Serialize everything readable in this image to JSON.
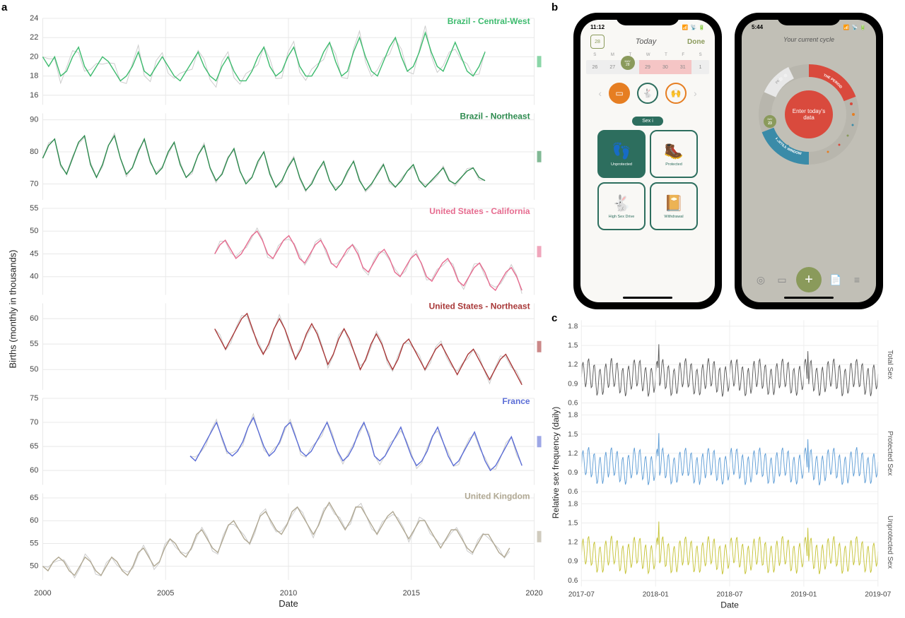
{
  "panel_labels": {
    "a": "a",
    "b": "b",
    "c": "c"
  },
  "chart_a": {
    "type": "line-small-multiples",
    "x_axis_label": "Date",
    "y_axis_label": "Births (monthly in thousands)",
    "x_domain": [
      2000,
      2020
    ],
    "x_ticks": [
      2000,
      2005,
      2010,
      2015,
      2020
    ],
    "background_color": "#ffffff",
    "grid_color": "#e8e8e8",
    "font_size_axis": 11,
    "font_size_label": 13,
    "rows": [
      {
        "label": "Brazil - Central-West",
        "color": "#3dbb6e",
        "y_ticks": [
          16,
          18,
          20,
          22,
          24
        ],
        "ylim": [
          15,
          24
        ],
        "x_start": 2000,
        "values": [
          20,
          19,
          20,
          18,
          18.5,
          20,
          21,
          19,
          18,
          19,
          20,
          19.5,
          18.5,
          17.5,
          18,
          19,
          20.5,
          18.5,
          18,
          19,
          20,
          19,
          18,
          17.5,
          18.5,
          19.5,
          20.5,
          19,
          18,
          17.5,
          19,
          20,
          18.5,
          17.5,
          17.5,
          18.5,
          20,
          21,
          19,
          18,
          18.5,
          20,
          21,
          19,
          18,
          18,
          19,
          20.5,
          21.5,
          19.5,
          18,
          18.5,
          20.5,
          22,
          20,
          18.5,
          18,
          19.5,
          21,
          22,
          20,
          18.5,
          19,
          20.5,
          22.5,
          20.5,
          19,
          18.5,
          20,
          21.5,
          20,
          18.5,
          18,
          19,
          20.5
        ]
      },
      {
        "label": "Brazil - Northeast",
        "color": "#2d8a4e",
        "y_ticks": [
          70,
          80,
          90
        ],
        "ylim": [
          65,
          92
        ],
        "x_start": 2000,
        "values": [
          78,
          82,
          84,
          76,
          73,
          78,
          83,
          85,
          76,
          72,
          76,
          82,
          85,
          78,
          73,
          75,
          80,
          84,
          77,
          73,
          75,
          80,
          83,
          76,
          72,
          74,
          79,
          82,
          75,
          71,
          73,
          78,
          81,
          74,
          70,
          72,
          77,
          80,
          73,
          69,
          71,
          75,
          78,
          72,
          68,
          70,
          74,
          77,
          71,
          68,
          70,
          74,
          77,
          71,
          68,
          70,
          73,
          76,
          71,
          69,
          71,
          74,
          76,
          71,
          69,
          71,
          73,
          75,
          71,
          70,
          72,
          74,
          75,
          72,
          71
        ]
      },
      {
        "label": "United States - California",
        "color": "#e66b8f",
        "y_ticks": [
          40,
          45,
          50,
          55
        ],
        "ylim": [
          36,
          55
        ],
        "x_start": 2007,
        "values": [
          45,
          47,
          48,
          46,
          44,
          45,
          47,
          49,
          50,
          48,
          45,
          44,
          46,
          48,
          49,
          47,
          44,
          43,
          45,
          47,
          48,
          46,
          43,
          42,
          44,
          46,
          47,
          45,
          42,
          41,
          43,
          45,
          46,
          44,
          41,
          40,
          42,
          44,
          45,
          43,
          40,
          39,
          41,
          43,
          44,
          42,
          39,
          38,
          40,
          42,
          43,
          41,
          38,
          37,
          39,
          41,
          42,
          40,
          37
        ]
      },
      {
        "label": "United States - Northeast",
        "color": "#a83838",
        "y_ticks": [
          50,
          55,
          60
        ],
        "ylim": [
          46,
          63
        ],
        "x_start": 2007,
        "values": [
          58,
          56,
          54,
          56,
          58,
          60,
          61,
          58,
          55,
          53,
          55,
          58,
          60,
          58,
          55,
          52,
          54,
          57,
          59,
          57,
          54,
          51,
          53,
          56,
          58,
          56,
          53,
          50,
          52,
          55,
          57,
          55,
          52,
          50,
          52,
          55,
          56,
          54,
          52,
          50,
          52,
          54,
          55,
          53,
          51,
          49,
          51,
          53,
          54,
          52,
          50,
          48,
          50,
          52,
          53,
          51,
          49,
          47
        ]
      },
      {
        "label": "France",
        "color": "#5b6dd6",
        "y_ticks": [
          60,
          65,
          70,
          75
        ],
        "ylim": [
          57,
          75
        ],
        "x_start": 2006,
        "values": [
          63,
          62,
          64,
          66,
          68,
          70,
          67,
          64,
          63,
          64,
          66,
          69,
          71,
          68,
          65,
          63,
          64,
          66,
          69,
          70,
          67,
          64,
          63,
          64,
          66,
          68,
          70,
          67,
          64,
          62,
          63,
          65,
          68,
          70,
          67,
          63,
          62,
          63,
          65,
          67,
          69,
          66,
          63,
          61,
          62,
          64,
          67,
          69,
          66,
          63,
          61,
          62,
          64,
          66,
          68,
          65,
          62,
          60,
          61,
          63,
          65,
          67,
          64,
          61
        ]
      },
      {
        "label": "United Kingdom",
        "color": "#b0a893",
        "y_ticks": [
          50,
          55,
          60,
          65
        ],
        "ylim": [
          47,
          66
        ],
        "x_start": 2000,
        "values": [
          50,
          49,
          51,
          52,
          51,
          49,
          48,
          50,
          52,
          51,
          49,
          48,
          50,
          52,
          51,
          49,
          48,
          50,
          53,
          54,
          52,
          50,
          51,
          54,
          56,
          55,
          53,
          52,
          54,
          57,
          58,
          56,
          54,
          53,
          56,
          59,
          60,
          58,
          56,
          55,
          58,
          61,
          62,
          60,
          58,
          57,
          59,
          62,
          63,
          61,
          59,
          57,
          59,
          62,
          64,
          62,
          60,
          58,
          60,
          63,
          63,
          61,
          59,
          57,
          59,
          61,
          62,
          60,
          58,
          56,
          58,
          60,
          60,
          58,
          56,
          54,
          56,
          58,
          58,
          56,
          54,
          53,
          55,
          57,
          57,
          55,
          53,
          52,
          54
        ]
      }
    ]
  },
  "phone1": {
    "status_time": "11:12",
    "header_daynum": "28",
    "header_title": "Today",
    "header_done": "Done",
    "weekdays": [
      "S",
      "M",
      "T",
      "W",
      "T",
      "F",
      "S"
    ],
    "dates": [
      "26",
      "27",
      "28",
      "29",
      "30",
      "31",
      "1"
    ],
    "pill_month": "MAY",
    "pill_day": "28",
    "sex_label": "Sex  i",
    "grid": [
      {
        "glyph": "👣",
        "label": "Unprotected",
        "filled": true
      },
      {
        "glyph": "🥾",
        "label": "Protected",
        "filled": false
      },
      {
        "glyph": "🐇",
        "label": "High Sex Drive",
        "filled": false
      },
      {
        "glyph": "📔",
        "label": "Withdrawal",
        "filled": false
      }
    ]
  },
  "phone2": {
    "status_time": "5:44",
    "title": "Your current cycle",
    "center_text": "Enter today's data",
    "arc_period_label": "THE PERIOD",
    "arc_fertile_label": "FERTILE WINDOW",
    "arc_pms_label": "PMS",
    "day_badge": "DAY 23",
    "colors": {
      "ring_base": "#b8b6ad",
      "period": "#d94a3d",
      "fertile": "#3a8ba8",
      "pms": "#e8e8e8",
      "center": "#d94a3d",
      "plus": "#8a9a5b"
    }
  },
  "chart_c": {
    "type": "line-small-multiples",
    "x_axis_label": "Date",
    "y_axis_label": "Relative sex frequency (daily)",
    "x_domain": [
      "2017-07",
      "2019-07"
    ],
    "x_ticks": [
      "2017-07",
      "2018-01",
      "2018-07",
      "2019-01",
      "2019-07"
    ],
    "y_ticks": [
      0.6,
      0.9,
      1.2,
      1.5,
      1.8
    ],
    "ylim": [
      0.55,
      1.85
    ],
    "background_color": "#ffffff",
    "grid_color": "#eeeeee",
    "font_size_axis": 10,
    "rows": [
      {
        "label": "Total Sex",
        "color": "#555555"
      },
      {
        "label": "Protected Sex",
        "color": "#5b9bd5"
      },
      {
        "label": "Unprotected Sex",
        "color": "#c5c233"
      }
    ]
  }
}
